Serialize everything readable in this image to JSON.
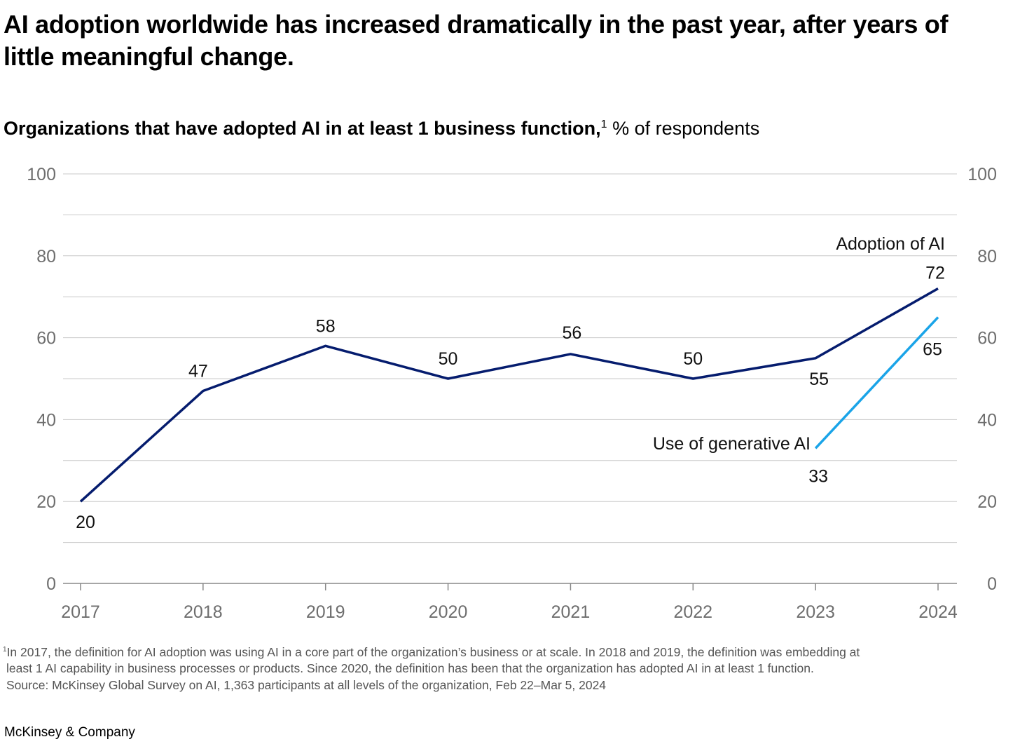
{
  "title": "AI adoption worldwide has increased dramatically in the past year, after years of little meaningful change.",
  "chart_data": {
    "type": "line",
    "subtitle_bold": "Organizations that have adopted AI in at least 1 business function,",
    "subtitle_sup": "1",
    "subtitle_unit": "% of respondents",
    "x": [
      "2017",
      "2018",
      "2019",
      "2020",
      "2021",
      "2022",
      "2023",
      "2024"
    ],
    "ylim": [
      0,
      100
    ],
    "yticks": [
      0,
      20,
      40,
      60,
      80,
      100
    ],
    "grid": true,
    "gridlines_every": 10,
    "series": [
      {
        "name": "Adoption of AI",
        "color": "#051c6e",
        "x": [
          "2017",
          "2018",
          "2019",
          "2020",
          "2021",
          "2022",
          "2023",
          "2024"
        ],
        "values": [
          20,
          47,
          58,
          50,
          56,
          50,
          55,
          72
        ]
      },
      {
        "name": "Use of generative AI",
        "color": "#1aa4e8",
        "x": [
          "2023",
          "2024"
        ],
        "values": [
          33,
          65
        ]
      }
    ]
  },
  "footnotes": [
    "In 2017, the definition for AI adoption was using AI in a core part of the organization’s business or at scale. In 2018 and 2019, the definition was embedding at",
    "least 1 AI capability in business processes or products. Since 2020, the definition has been that the organization has adopted AI in at least 1 function.",
    "Source: McKinsey Global Survey on AI, 1,363 participants at all levels of the organization, Feb 22–Mar 5, 2024"
  ],
  "footnote_marker": "1",
  "brand": "McKinsey & Company"
}
